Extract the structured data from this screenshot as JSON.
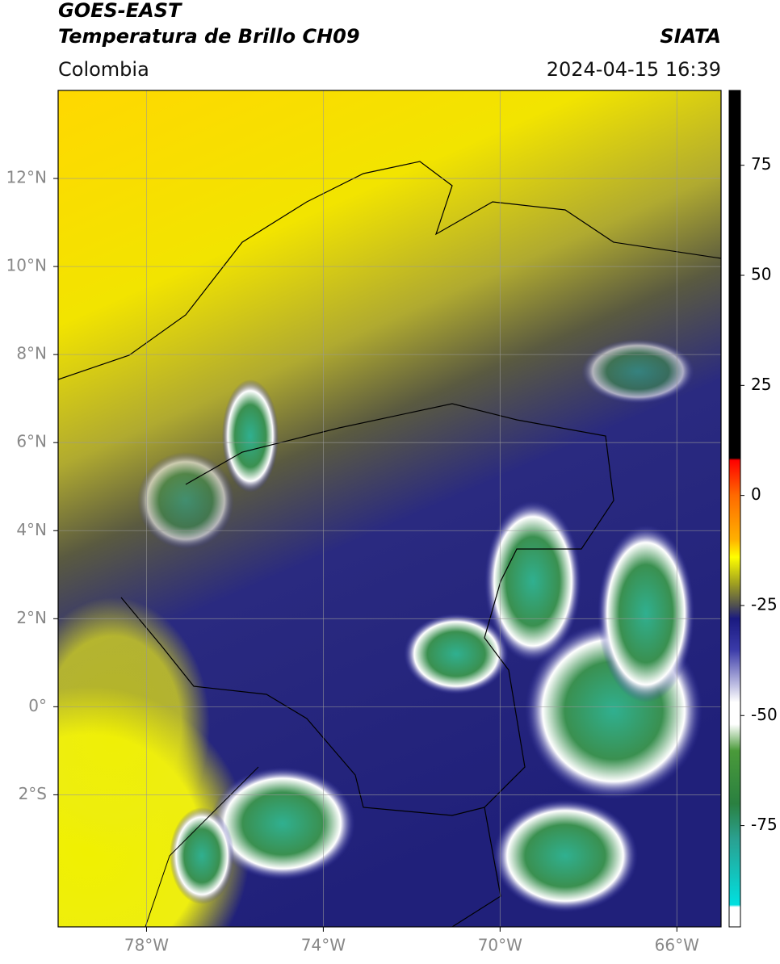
{
  "header": {
    "title": "GOES-EAST",
    "subtitle": "Temperatura de Brillo CH09",
    "source": "SIATA",
    "region": "Colombia",
    "datetime": "2024-04-15 16:39"
  },
  "map": {
    "xlim": [
      -80,
      -65
    ],
    "ylim": [
      -5,
      14
    ],
    "xticks": [
      {
        "value": -78,
        "label": "78°W"
      },
      {
        "value": -74,
        "label": "74°W"
      },
      {
        "value": -70,
        "label": "70°W"
      },
      {
        "value": -66,
        "label": "66°W"
      }
    ],
    "yticks": [
      {
        "value": 12,
        "label": "12°N"
      },
      {
        "value": 10,
        "label": "10°N"
      },
      {
        "value": 8,
        "label": "8°N"
      },
      {
        "value": 6,
        "label": "6°N"
      },
      {
        "value": 4,
        "label": "4°N"
      },
      {
        "value": 2,
        "label": "2°N"
      },
      {
        "value": 0,
        "label": "0°"
      },
      {
        "value": -2,
        "label": "2°S"
      }
    ],
    "grid": true
  },
  "colorbar": {
    "lim": [
      -98,
      92
    ],
    "ticks": [
      75,
      50,
      25,
      0,
      -25,
      -50,
      -75
    ],
    "colormap": [
      {
        "value": 92,
        "color": "#000000"
      },
      {
        "value": 8.5,
        "color": "#000000"
      },
      {
        "value": 8,
        "color": "#ff0000"
      },
      {
        "value": 0,
        "color": "#ff6a00"
      },
      {
        "value": -10,
        "color": "#ffb000"
      },
      {
        "value": -14,
        "color": "#ffff00"
      },
      {
        "value": -20,
        "color": "#a0a020"
      },
      {
        "value": -25,
        "color": "#505050"
      },
      {
        "value": -28,
        "color": "#1a1a80"
      },
      {
        "value": -35,
        "color": "#3a3aa8"
      },
      {
        "value": -47,
        "color": "#ffffff"
      },
      {
        "value": -52,
        "color": "#ffffff"
      },
      {
        "value": -58,
        "color": "#4a9a3a"
      },
      {
        "value": -70,
        "color": "#2a8040"
      },
      {
        "value": -78,
        "color": "#2aa090"
      },
      {
        "value": -93,
        "color": "#00e0e0"
      },
      {
        "value": -93.5,
        "color": "#ffffff"
      },
      {
        "value": -98,
        "color": "#ffffff"
      }
    ]
  }
}
